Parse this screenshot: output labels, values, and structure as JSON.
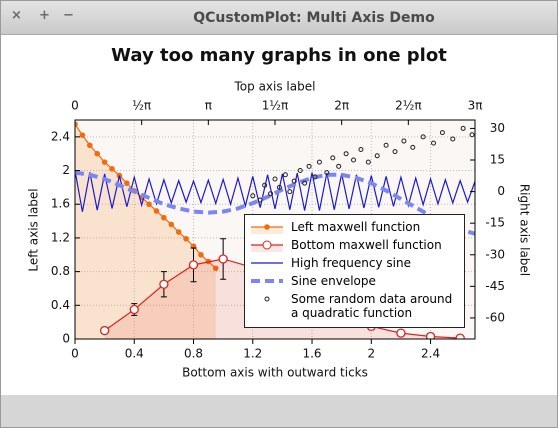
{
  "window": {
    "title": "QCustomPlot: Multi Axis Demo",
    "buttons": [
      "×",
      "+",
      "−"
    ]
  },
  "chart_data": {
    "type": "line",
    "title": "Way too many graphs in one plot",
    "x_label": "Bottom axis with outward ticks",
    "x2_label": "Top axis label",
    "y_label": "Left axis label",
    "y2_label": "Right axis label",
    "xlim": [
      0,
      2.7
    ],
    "xticks": [
      0,
      0.4,
      0.8,
      1.2,
      1.6,
      2,
      2.4
    ],
    "x2lim": [
      0,
      9.4248
    ],
    "x2ticks": [
      0,
      {
        "value": 1.5708,
        "label": "½π"
      },
      {
        "value": 3.1416,
        "label": "π"
      },
      {
        "value": 4.7124,
        "label": "1½π"
      },
      {
        "value": 6.2832,
        "label": "2π"
      },
      {
        "value": 7.854,
        "label": "2½π"
      },
      {
        "value": 9.4248,
        "label": "3π"
      }
    ],
    "ylim": [
      0,
      2.6
    ],
    "yticks": [
      0,
      0.4,
      0.8,
      1.2,
      1.6,
      2,
      2.4
    ],
    "y2lim": [
      -70,
      34
    ],
    "y2ticks": [
      30,
      15,
      0,
      -15,
      -30,
      -45,
      -60
    ],
    "grid": true,
    "legend": "bottom-right",
    "series": [
      {
        "name": "Left maxwell function",
        "type": "line",
        "axis": "y",
        "color": "#f26b0f",
        "marker": "dot",
        "fill": "rgba(242,140,40,0.18)",
        "x": [
          0,
          0.05,
          0.1,
          0.15,
          0.2,
          0.25,
          0.3,
          0.35,
          0.4,
          0.45,
          0.5,
          0.55,
          0.6,
          0.65,
          0.7,
          0.75,
          0.8,
          0.85,
          0.9,
          0.95
        ],
        "values": [
          2.55,
          2.42,
          2.3,
          2.2,
          2.1,
          2.02,
          1.94,
          1.85,
          1.76,
          1.68,
          1.6,
          1.52,
          1.44,
          1.36,
          1.27,
          1.19,
          1.1,
          1.0,
          0.92,
          0.84
        ]
      },
      {
        "name": "Bottom maxwell function",
        "type": "line",
        "axis": "y",
        "color": "#e0231b",
        "marker": "circle",
        "fill": "rgba(230,60,50,0.12)",
        "x": [
          0.2,
          0.4,
          0.6,
          0.8,
          1,
          1.2,
          1.4,
          1.6,
          1.8,
          2,
          2.2,
          2.4,
          2.6
        ],
        "values": [
          0.1,
          0.35,
          0.65,
          0.88,
          0.95,
          0.85,
          0.7,
          0.5,
          0.3,
          0.15,
          0.07,
          0.03,
          0.01
        ],
        "errors": [
          0.03,
          0.07,
          0.15,
          0.2,
          0.24,
          0.2,
          0.15,
          0.1,
          0.07,
          0.04,
          0.02,
          0.01,
          0.01
        ]
      },
      {
        "name": "High frequency sine",
        "type": "line",
        "axis": "y2",
        "color": "#1a1ad6",
        "x": [
          0,
          0.05,
          0.1,
          0.15,
          0.2,
          0.25,
          0.3,
          0.35,
          0.4,
          0.45,
          0.5,
          0.55,
          0.6,
          0.65,
          0.7,
          0.75,
          0.8,
          0.85,
          0.9,
          0.95,
          1,
          1.05,
          1.1,
          1.15,
          1.2,
          1.25,
          1.3,
          1.35,
          1.4,
          1.45,
          1.5,
          1.55,
          1.6,
          1.65,
          1.7,
          1.75,
          1.8,
          1.85,
          1.9,
          1.95,
          2,
          2.05,
          2.1,
          2.15,
          2.2,
          2.25,
          2.3,
          2.35,
          2.4,
          2.45,
          2.5,
          2.55,
          2.6,
          2.65,
          2.7
        ],
        "values": [
          10,
          -9.6,
          9.2,
          -8.8,
          8.4,
          -8,
          7.6,
          -7.2,
          6.8,
          -6.4,
          6,
          -5.8,
          5.6,
          -5.4,
          5.2,
          -5,
          5,
          -5.2,
          5.4,
          -5.6,
          5.8,
          -6,
          6.4,
          -6.8,
          7.2,
          -7.6,
          8,
          -8.2,
          8.4,
          -8.6,
          8.8,
          -9,
          9,
          -9,
          8.8,
          -8.6,
          8.4,
          -8.2,
          8,
          -7.8,
          7.6,
          -7.4,
          7.2,
          -7,
          6.8,
          -6.6,
          6.4,
          -6.2,
          6,
          -5.8,
          5.6,
          -5.4,
          5.2,
          -5,
          4.8
        ]
      },
      {
        "name": "Sine envelope",
        "type": "line",
        "axis": "y2",
        "color": "#7a86f2",
        "dashed": true,
        "x": [
          0,
          0.1,
          0.2,
          0.3,
          0.4,
          0.5,
          0.6,
          0.7,
          0.8,
          0.9,
          1,
          1.1,
          1.2,
          1.3,
          1.4,
          1.5,
          1.6,
          1.7,
          1.8,
          1.9,
          2,
          2.1,
          2.2,
          2.3,
          2.4,
          2.5,
          2.6,
          2.7
        ],
        "values": [
          9,
          8,
          6,
          3,
          0,
          -3,
          -6,
          -8,
          -9.5,
          -10,
          -9.5,
          -8,
          -5.5,
          -2.5,
          1,
          4,
          6.5,
          8,
          8,
          6.5,
          4,
          0.5,
          -3.5,
          -7.5,
          -11.5,
          -15,
          -18,
          -20
        ]
      },
      {
        "name": "Some random data around a quadratic function",
        "type": "scatter",
        "axis": "y2",
        "color": "#222222",
        "x": [
          1.2,
          1.25,
          1.28,
          1.32,
          1.35,
          1.38,
          1.42,
          1.45,
          1.48,
          1.52,
          1.55,
          1.58,
          1.62,
          1.65,
          1.7,
          1.74,
          1.78,
          1.83,
          1.88,
          1.93,
          1.98,
          2.04,
          2.1,
          2.16,
          2.22,
          2.28,
          2.35,
          2.42,
          2.48,
          2.55,
          2.62,
          2.68
        ],
        "values": [
          -2,
          -4,
          3,
          -1,
          6,
          2,
          8,
          0,
          5,
          10,
          4,
          12,
          7,
          14,
          9,
          16,
          12,
          18,
          15,
          20,
          14,
          17,
          22,
          19,
          24,
          21,
          26,
          23,
          28,
          25,
          30,
          27
        ]
      }
    ]
  }
}
